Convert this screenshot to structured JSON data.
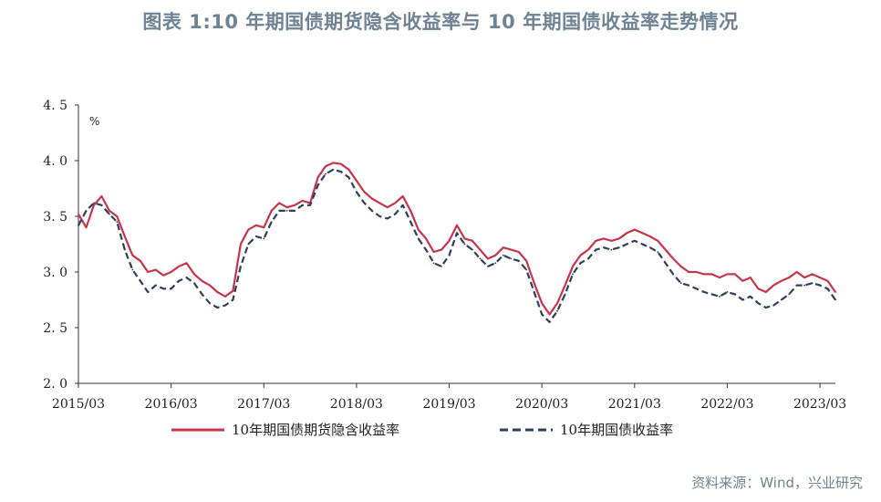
{
  "title": "图表 1:10 年期国债期货隐含收益率与 10 年期国债收益率走势情况",
  "source": "资料来源：Wind，兴业研究",
  "chart_data": {
    "type": "line",
    "unit": "%",
    "ylim": [
      2.0,
      4.5
    ],
    "yticks": [
      "4. 5",
      "4. 0",
      "3. 5",
      "3. 0",
      "2. 5",
      "2. 0"
    ],
    "ytick_values": [
      4.5,
      4.0,
      3.5,
      3.0,
      2.5,
      2.0
    ],
    "xticks": [
      "2015/03",
      "2016/03",
      "2017/03",
      "2018/03",
      "2019/03",
      "2020/03",
      "2021/03",
      "2022/03",
      "2023/03"
    ],
    "grid": false,
    "legend_position": "bottom",
    "x": [
      "2015/03",
      "2015/04",
      "2015/05",
      "2015/06",
      "2015/07",
      "2015/08",
      "2015/09",
      "2015/10",
      "2015/11",
      "2015/12",
      "2016/01",
      "2016/02",
      "2016/03",
      "2016/04",
      "2016/05",
      "2016/06",
      "2016/07",
      "2016/08",
      "2016/09",
      "2016/10",
      "2016/11",
      "2016/12",
      "2017/01",
      "2017/02",
      "2017/03",
      "2017/04",
      "2017/05",
      "2017/06",
      "2017/07",
      "2017/08",
      "2017/09",
      "2017/10",
      "2017/11",
      "2017/12",
      "2018/01",
      "2018/02",
      "2018/03",
      "2018/04",
      "2018/05",
      "2018/06",
      "2018/07",
      "2018/08",
      "2018/09",
      "2018/10",
      "2018/11",
      "2018/12",
      "2019/01",
      "2019/02",
      "2019/03",
      "2019/04",
      "2019/05",
      "2019/06",
      "2019/07",
      "2019/08",
      "2019/09",
      "2019/10",
      "2019/11",
      "2019/12",
      "2020/01",
      "2020/02",
      "2020/03",
      "2020/04",
      "2020/05",
      "2020/06",
      "2020/07",
      "2020/08",
      "2020/09",
      "2020/10",
      "2020/11",
      "2020/12",
      "2021/01",
      "2021/02",
      "2021/03",
      "2021/04",
      "2021/05",
      "2021/06",
      "2021/07",
      "2021/08",
      "2021/09",
      "2021/10",
      "2021/11",
      "2021/12",
      "2022/01",
      "2022/02",
      "2022/03",
      "2022/04",
      "2022/05",
      "2022/06",
      "2022/07",
      "2022/08",
      "2022/09",
      "2022/10",
      "2022/11",
      "2022/12",
      "2023/01",
      "2023/02",
      "2023/03",
      "2023/04",
      "2023/05"
    ],
    "series": [
      {
        "name": "10年期国债期货隐含收益率",
        "color": "#c8344a",
        "style": "solid",
        "values": [
          3.52,
          3.4,
          3.6,
          3.68,
          3.55,
          3.5,
          3.32,
          3.15,
          3.1,
          3.0,
          3.02,
          2.97,
          3.0,
          3.05,
          3.08,
          2.98,
          2.92,
          2.88,
          2.82,
          2.78,
          2.83,
          3.25,
          3.38,
          3.42,
          3.4,
          3.55,
          3.62,
          3.58,
          3.6,
          3.64,
          3.62,
          3.85,
          3.95,
          3.98,
          3.97,
          3.92,
          3.82,
          3.72,
          3.66,
          3.62,
          3.58,
          3.62,
          3.68,
          3.55,
          3.38,
          3.3,
          3.18,
          3.2,
          3.28,
          3.42,
          3.3,
          3.28,
          3.2,
          3.12,
          3.15,
          3.22,
          3.2,
          3.18,
          3.1,
          2.9,
          2.72,
          2.62,
          2.72,
          2.88,
          3.05,
          3.15,
          3.2,
          3.28,
          3.3,
          3.28,
          3.3,
          3.35,
          3.38,
          3.35,
          3.32,
          3.28,
          3.2,
          3.12,
          3.05,
          3.0,
          3.0,
          2.98,
          2.98,
          2.95,
          2.98,
          2.98,
          2.92,
          2.95,
          2.85,
          2.82,
          2.88,
          2.92,
          2.95,
          3.0,
          2.95,
          2.98,
          2.95,
          2.92,
          2.82
        ]
      },
      {
        "name": "10年期国债收益率",
        "color": "#2f3e5c",
        "style": "dashed",
        "values": [
          3.42,
          3.55,
          3.62,
          3.6,
          3.52,
          3.45,
          3.2,
          3.02,
          2.92,
          2.82,
          2.88,
          2.85,
          2.85,
          2.92,
          2.95,
          2.9,
          2.8,
          2.72,
          2.68,
          2.7,
          2.75,
          3.05,
          3.25,
          3.32,
          3.3,
          3.45,
          3.55,
          3.55,
          3.55,
          3.6,
          3.6,
          3.78,
          3.88,
          3.92,
          3.9,
          3.85,
          3.72,
          3.62,
          3.55,
          3.5,
          3.48,
          3.52,
          3.6,
          3.45,
          3.3,
          3.2,
          3.08,
          3.05,
          3.15,
          3.35,
          3.25,
          3.2,
          3.12,
          3.05,
          3.08,
          3.15,
          3.12,
          3.1,
          3.02,
          2.82,
          2.62,
          2.55,
          2.65,
          2.8,
          2.98,
          3.08,
          3.12,
          3.2,
          3.22,
          3.2,
          3.22,
          3.25,
          3.28,
          3.25,
          3.22,
          3.18,
          3.08,
          2.98,
          2.9,
          2.88,
          2.85,
          2.82,
          2.8,
          2.78,
          2.82,
          2.8,
          2.75,
          2.78,
          2.72,
          2.68,
          2.7,
          2.75,
          2.8,
          2.88,
          2.88,
          2.9,
          2.88,
          2.85,
          2.75
        ]
      }
    ]
  }
}
